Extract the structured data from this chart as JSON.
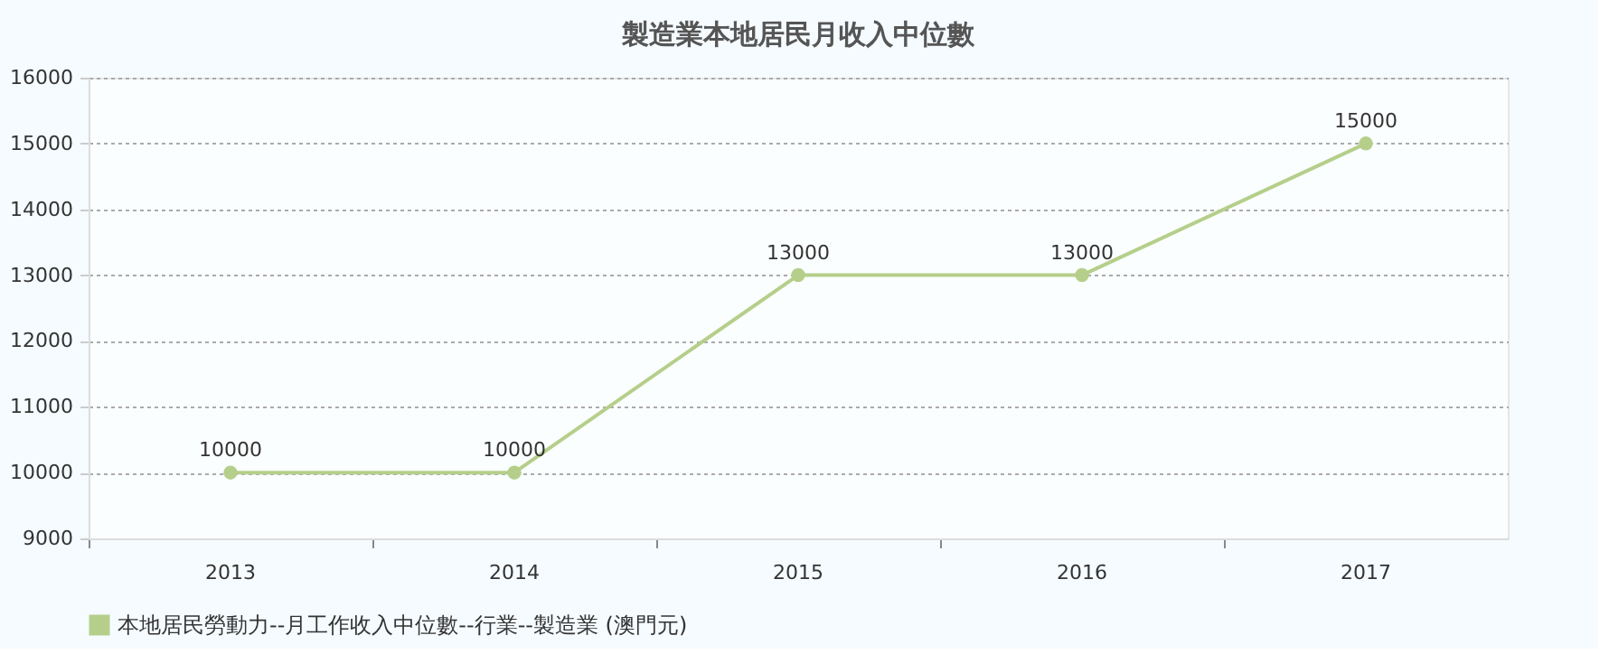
{
  "chart_data": {
    "type": "line",
    "title": "製造業本地居民月收入中位數",
    "categories": [
      "2013",
      "2014",
      "2015",
      "2016",
      "2017"
    ],
    "series": [
      {
        "name": "本地居民勞動力--月工作收入中位數--行業--製造業 (澳門元)",
        "color": "#b5cf8a",
        "values": [
          10000,
          10000,
          13000,
          13000,
          15000
        ]
      }
    ],
    "ylim": [
      9000,
      16000
    ],
    "yticks": [
      9000,
      10000,
      11000,
      12000,
      13000,
      14000,
      15000,
      16000
    ],
    "grid": "y",
    "legend": "bottom",
    "marker": "circle",
    "line_style": "solid",
    "data_labels": true
  }
}
